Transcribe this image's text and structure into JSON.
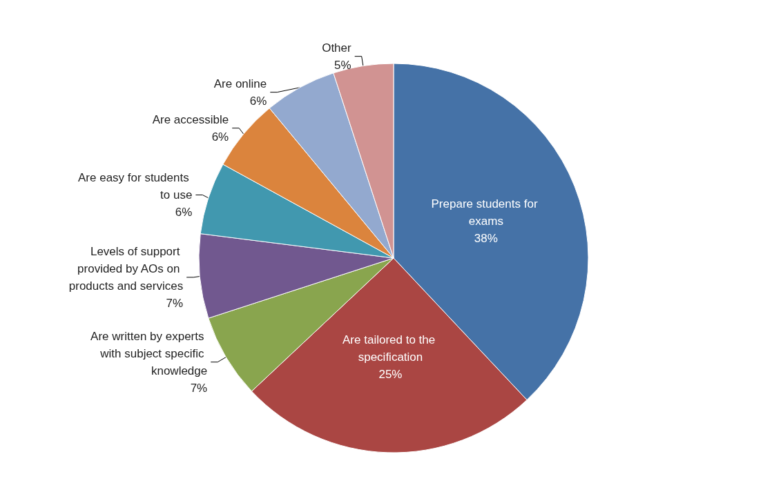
{
  "chart_data": {
    "type": "pie",
    "categories": [
      "Prepare students for exams",
      "Are tailored to the specification",
      "Are written by experts with subject specific knowledge",
      "Levels of support provided by AOs on products and services",
      "Are easy for students to use",
      "Are accessible",
      "Are online",
      "Other"
    ],
    "values": [
      38,
      25,
      7,
      7,
      6,
      6,
      6,
      5
    ],
    "value_labels": [
      "38%",
      "25%",
      "7%",
      "7%",
      "6%",
      "6%",
      "6%",
      "5%"
    ],
    "colors": [
      "#4572a7",
      "#aa4643",
      "#89a54e",
      "#71588f",
      "#4198af",
      "#db843d",
      "#93a9cf",
      "#d19392"
    ],
    "legend": false
  }
}
